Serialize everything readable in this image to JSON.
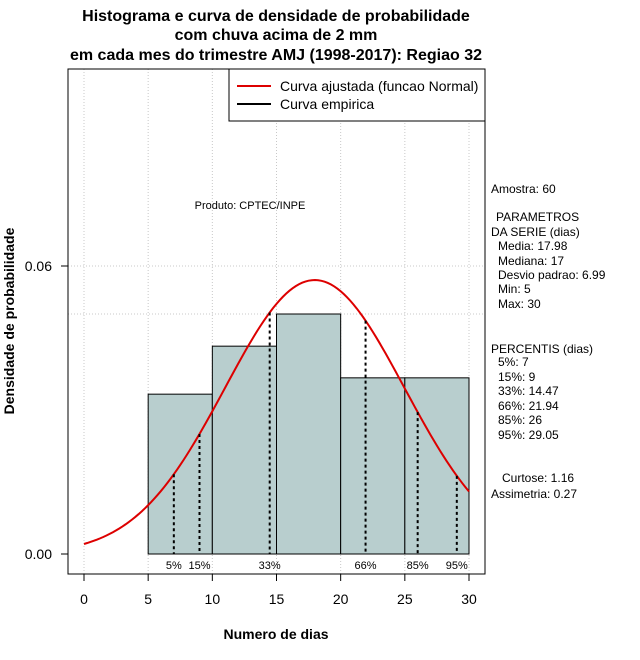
{
  "chart_data": {
    "type": "histogram",
    "title_lines": [
      "Histograma e curva de densidade de probabilidade",
      "com chuva acima de 2 mm",
      "em cada mes do trimestre AMJ (1998-2017): Regiao 32"
    ],
    "xlabel": "Numero de dias",
    "ylabel": "Densidade de probabilidade",
    "xlim": [
      -2,
      32
    ],
    "ylim": [
      -0.004,
      0.1
    ],
    "x_ticks": [
      0,
      5,
      10,
      15,
      20,
      25,
      30
    ],
    "x_tick_labels": [
      "0",
      "5",
      "10",
      "15",
      "20",
      "25",
      "30"
    ],
    "y_ticks": [
      0.0,
      0.06
    ],
    "y_tick_labels": [
      "0.00",
      "0.06"
    ],
    "bins": [
      {
        "from": 5,
        "to": 10,
        "density": 0.0333
      },
      {
        "from": 10,
        "to": 15,
        "density": 0.0433
      },
      {
        "from": 15,
        "to": 20,
        "density": 0.05
      },
      {
        "from": 20,
        "to": 25,
        "density": 0.0367
      },
      {
        "from": 25,
        "to": 30,
        "density": 0.0367
      }
    ],
    "grid_y": [
      0.06,
      0.05
    ],
    "normal_curve": {
      "mean": 17.98,
      "sd": 6.99,
      "x_range": [
        0,
        30
      ],
      "color": "#dd0000"
    },
    "bar_color": "#b8cece",
    "percentile_lines": [
      {
        "label": "5%",
        "x": 7
      },
      {
        "label": "15%",
        "x": 9
      },
      {
        "label": "33%",
        "x": 14.47
      },
      {
        "label": "66%",
        "x": 21.94
      },
      {
        "label": "85%",
        "x": 26
      },
      {
        "label": "95%",
        "x": 29.05
      }
    ],
    "legend": [
      {
        "label": "Curva ajustada (funcao Normal)",
        "color": "#dd0000"
      },
      {
        "label": "Curva empirica",
        "color": "#000000"
      }
    ],
    "annotation": "Produto: CPTEC/INPE"
  },
  "stats": {
    "amostra": "Amostra: 60",
    "param_title1": "PARAMETROS",
    "param_title2": "DA SERIE (dias)",
    "media": "Media: 17.98",
    "mediana": "Mediana: 17",
    "desvio": "Desvio padrao: 6.99",
    "min": "Min: 5",
    "max": "Max: 30",
    "percentis_title": "PERCENTIS (dias)",
    "p5": "5%: 7",
    "p15": "15%: 9",
    "p33": "33%: 14.47",
    "p66": "66%: 21.94",
    "p85": "85%: 26",
    "p95": "95%: 29.05",
    "curtose": "Curtose: 1.16",
    "assimetria": "Assimetria: 0.27"
  }
}
